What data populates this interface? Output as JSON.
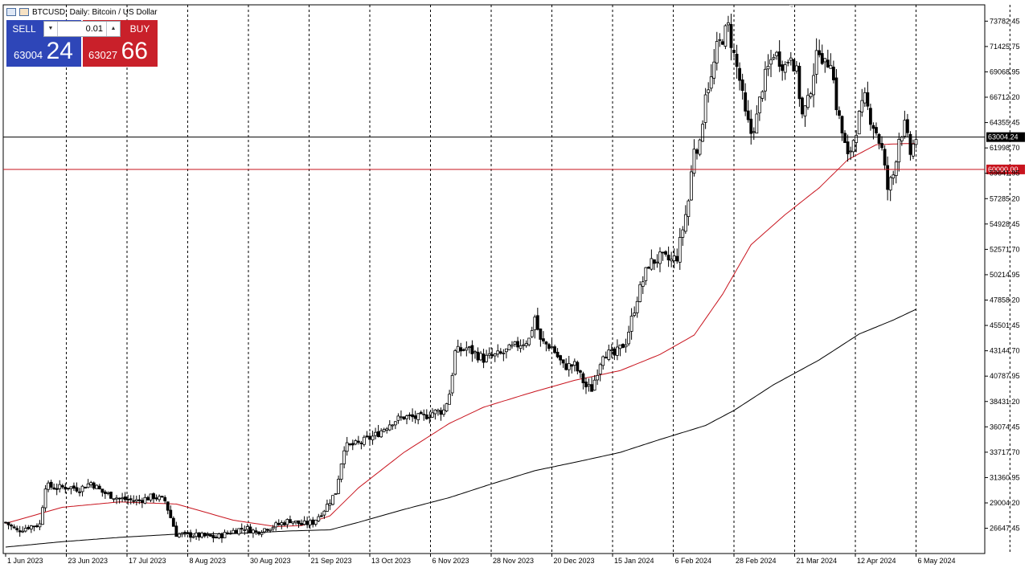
{
  "header": {
    "symbol_line": "BTCUSD, Daily:  Bitcoin / US Dollar"
  },
  "trade_panel": {
    "sell_label": "SELL",
    "buy_label": "BUY",
    "lot_value": "0.01",
    "sell_price_small": "63004",
    "sell_price_big": "24",
    "buy_price_small": "63027",
    "buy_price_big": "66",
    "sell_color": "#2e46b8",
    "buy_color": "#c9202a"
  },
  "chart_data": {
    "type": "candlestick",
    "ylim": [
      24300,
      75300
    ],
    "y_ticks": [
      "73782.45",
      "71425.75",
      "69068.95",
      "66712.20",
      "64355.45",
      "61998.70",
      "59641.95",
      "57285.20",
      "54928.45",
      "52571.70",
      "50214.95",
      "47858.20",
      "45501.45",
      "43144.70",
      "40787.95",
      "38431.20",
      "36074.45",
      "33717.70",
      "31360.95",
      "29004.20",
      "26647.45"
    ],
    "x_ticks": [
      "1 Jun 2023",
      "23 Jun 2023",
      "17 Jul 2023",
      "8 Aug 2023",
      "30 Aug 2023",
      "21 Sep 2023",
      "13 Oct 2023",
      "6 Nov 2023",
      "28 Nov 2023",
      "20 Dec 2023",
      "15 Jan 2024",
      "6 Feb 2024",
      "28 Feb 2024",
      "21 Mar 2024",
      "12 Apr 2024",
      "6 May 2024"
    ],
    "current_price_label": "63004.24",
    "current_price": 63004.24,
    "level_label": "60000.00",
    "level_price": 60000,
    "price_anchors": [
      [
        0,
        27200
      ],
      [
        4,
        26400
      ],
      [
        8,
        26800
      ],
      [
        12,
        27000
      ],
      [
        14,
        30600
      ],
      [
        18,
        30400
      ],
      [
        22,
        30500
      ],
      [
        26,
        30300
      ],
      [
        30,
        30900
      ],
      [
        34,
        30000
      ],
      [
        40,
        29400
      ],
      [
        46,
        29200
      ],
      [
        52,
        29600
      ],
      [
        56,
        29200
      ],
      [
        60,
        26100
      ],
      [
        66,
        26000
      ],
      [
        70,
        25900
      ],
      [
        74,
        25800
      ],
      [
        80,
        26400
      ],
      [
        84,
        26700
      ],
      [
        88,
        26300
      ],
      [
        92,
        26700
      ],
      [
        96,
        27000
      ],
      [
        100,
        27400
      ],
      [
        104,
        27000
      ],
      [
        108,
        27200
      ],
      [
        112,
        28400
      ],
      [
        116,
        30000
      ],
      [
        119,
        34200
      ],
      [
        124,
        34500
      ],
      [
        130,
        35300
      ],
      [
        136,
        36600
      ],
      [
        140,
        37000
      ],
      [
        146,
        36900
      ],
      [
        150,
        37400
      ],
      [
        154,
        37600
      ],
      [
        156,
        39200
      ],
      [
        158,
        43000
      ],
      [
        162,
        43400
      ],
      [
        168,
        42400
      ],
      [
        174,
        42800
      ],
      [
        180,
        43700
      ],
      [
        184,
        44200
      ],
      [
        186,
        46300
      ],
      [
        188,
        44000
      ],
      [
        192,
        43500
      ],
      [
        196,
        41700
      ],
      [
        200,
        41800
      ],
      [
        204,
        39800
      ],
      [
        206,
        39600
      ],
      [
        210,
        43000
      ],
      [
        214,
        42700
      ],
      [
        218,
        44000
      ],
      [
        222,
        48100
      ],
      [
        226,
        51200
      ],
      [
        230,
        51800
      ],
      [
        234,
        51500
      ],
      [
        236,
        51900
      ],
      [
        240,
        57100
      ],
      [
        242,
        62200
      ],
      [
        244,
        62100
      ],
      [
        246,
        67400
      ],
      [
        248,
        68300
      ],
      [
        250,
        71200
      ],
      [
        252,
        72300
      ],
      [
        254,
        73200
      ],
      [
        256,
        70600
      ],
      [
        258,
        68300
      ],
      [
        260,
        65000
      ],
      [
        262,
        63400
      ],
      [
        264,
        64800
      ],
      [
        266,
        67800
      ],
      [
        270,
        70900
      ],
      [
        274,
        69600
      ],
      [
        276,
        70900
      ],
      [
        278,
        68900
      ],
      [
        280,
        65000
      ],
      [
        282,
        66200
      ],
      [
        284,
        69200
      ],
      [
        286,
        71400
      ],
      [
        288,
        69600
      ],
      [
        290,
        70400
      ],
      [
        292,
        66000
      ],
      [
        294,
        63400
      ],
      [
        296,
        61000
      ],
      [
        298,
        62800
      ],
      [
        300,
        64900
      ],
      [
        302,
        66500
      ],
      [
        304,
        64800
      ],
      [
        306,
        63500
      ],
      [
        308,
        61800
      ],
      [
        310,
        58200
      ],
      [
        312,
        59500
      ],
      [
        314,
        63000
      ],
      [
        316,
        64000
      ],
      [
        318,
        61500
      ],
      [
        320,
        63000
      ]
    ],
    "ma_red": [
      [
        0,
        27100
      ],
      [
        20,
        28600
      ],
      [
        40,
        29100
      ],
      [
        60,
        28900
      ],
      [
        80,
        27400
      ],
      [
        95,
        26800
      ],
      [
        104,
        26900
      ],
      [
        114,
        27800
      ],
      [
        124,
        30400
      ],
      [
        140,
        33700
      ],
      [
        156,
        36400
      ],
      [
        168,
        37900
      ],
      [
        184,
        39200
      ],
      [
        200,
        40400
      ],
      [
        216,
        41300
      ],
      [
        230,
        42800
      ],
      [
        242,
        44600
      ],
      [
        252,
        48400
      ],
      [
        262,
        53000
      ],
      [
        274,
        55800
      ],
      [
        286,
        58300
      ],
      [
        296,
        60900
      ],
      [
        306,
        62300
      ],
      [
        316,
        62400
      ],
      [
        320,
        62400
      ]
    ],
    "ma_black": [
      [
        0,
        24900
      ],
      [
        20,
        25400
      ],
      [
        40,
        25800
      ],
      [
        60,
        26100
      ],
      [
        80,
        26150
      ],
      [
        100,
        26400
      ],
      [
        114,
        26500
      ],
      [
        124,
        27200
      ],
      [
        140,
        28400
      ],
      [
        156,
        29500
      ],
      [
        170,
        30700
      ],
      [
        186,
        32000
      ],
      [
        204,
        33000
      ],
      [
        216,
        33700
      ],
      [
        230,
        34900
      ],
      [
        246,
        36200
      ],
      [
        256,
        37600
      ],
      [
        270,
        40000
      ],
      [
        286,
        42300
      ],
      [
        300,
        44700
      ],
      [
        312,
        46000
      ],
      [
        320,
        47000
      ]
    ],
    "total_bars": 345,
    "colors": {
      "candle": "#000000",
      "ma_fast": "#c8141e",
      "ma_slow": "#000000",
      "level": "#c8141e"
    }
  }
}
